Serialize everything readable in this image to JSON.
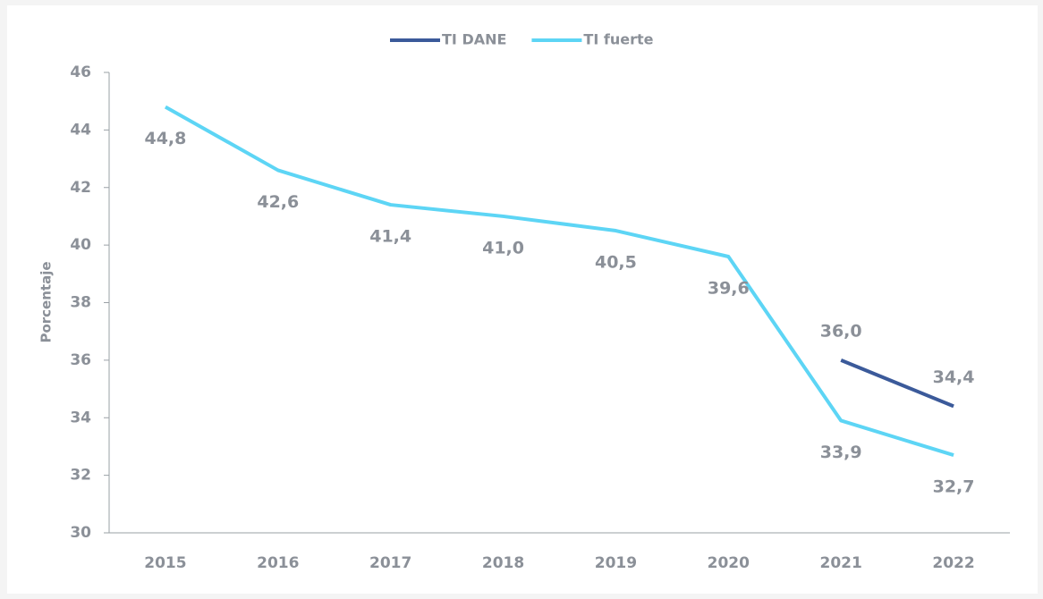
{
  "chart_data": {
    "type": "line",
    "categories": [
      "2015",
      "2016",
      "2017",
      "2018",
      "2019",
      "2020",
      "2021",
      "2022"
    ],
    "series": [
      {
        "name": "TI DANE",
        "color": "#3b5a9a",
        "values": [
          null,
          null,
          null,
          null,
          null,
          null,
          36.0,
          34.4
        ],
        "value_labels": [
          null,
          null,
          null,
          null,
          null,
          null,
          "36,0",
          "34,4"
        ]
      },
      {
        "name": "TI fuerte",
        "color": "#5dd5f5",
        "values": [
          44.8,
          42.6,
          41.4,
          41.0,
          40.5,
          39.6,
          33.9,
          32.7
        ],
        "value_labels": [
          "44,8",
          "42,6",
          "41,4",
          "41,0",
          "40,5",
          "39,6",
          "33,9",
          "32,7"
        ]
      }
    ],
    "ylabel": "Porcentaje",
    "ylim": [
      30,
      46
    ],
    "yticks": [
      30,
      32,
      34,
      36,
      38,
      40,
      42,
      44,
      46
    ],
    "legend": "top"
  }
}
